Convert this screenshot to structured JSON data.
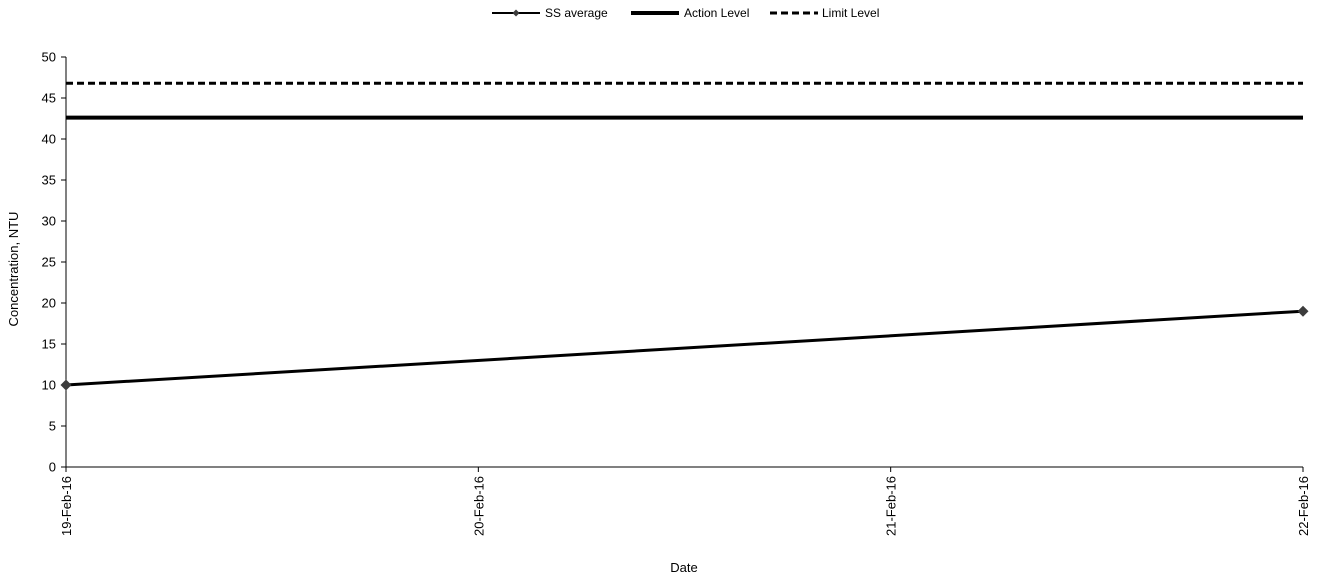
{
  "chart_data": {
    "type": "line",
    "title": "",
    "xlabel": "Date",
    "ylabel": "Concentration, NTU",
    "x": [
      "19-Feb-16",
      "20-Feb-16",
      "21-Feb-16",
      "22-Feb-16"
    ],
    "ylim": [
      0,
      50
    ],
    "yticks": [
      0,
      5,
      10,
      15,
      20,
      25,
      30,
      35,
      40,
      45,
      50
    ],
    "grid": false,
    "legend_position": "top-center",
    "series": [
      {
        "name": "SS average",
        "style": "solid-with-diamond-markers",
        "color": "#000000",
        "marker_color": "#3c3c3c",
        "points": [
          {
            "x": "19-Feb-16",
            "y": 10
          },
          {
            "x": "22-Feb-16",
            "y": 19
          }
        ]
      },
      {
        "name": "Action Level",
        "style": "thick-solid",
        "color": "#000000",
        "points": [
          {
            "x": "19-Feb-16",
            "y": 42.6
          },
          {
            "x": "22-Feb-16",
            "y": 42.6
          }
        ]
      },
      {
        "name": "Limit Level",
        "style": "dashed",
        "color": "#000000",
        "points": [
          {
            "x": "19-Feb-16",
            "y": 46.8
          },
          {
            "x": "22-Feb-16",
            "y": 46.8
          }
        ]
      }
    ]
  }
}
